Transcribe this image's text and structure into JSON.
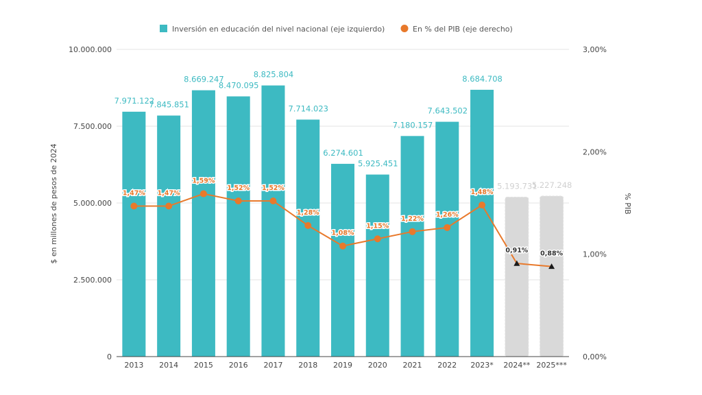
{
  "chart_data": {
    "type": "bar",
    "categories": [
      "2013",
      "2014",
      "2015",
      "2016",
      "2017",
      "2018",
      "2019",
      "2020",
      "2021",
      "2022",
      "2023*",
      "2024**",
      "2025***"
    ],
    "series": [
      {
        "name": "Inversión en educación del nivel nacional (eje izquierdo)",
        "type": "bar",
        "axis": "left",
        "values": [
          7971122,
          7845851,
          8669247,
          8470095,
          8825804,
          7714023,
          6274601,
          5925451,
          7180157,
          7643502,
          8684708,
          5193731,
          5227248
        ],
        "labels": [
          "7.971.122",
          "7.845.851",
          "8.669.247",
          "8.470.095",
          "8.825.804",
          "7.714.023",
          "6.274.601",
          "5.925.451",
          "7.180.157",
          "7.643.502",
          "8.684.708",
          "5.193.731",
          "5.227.248"
        ],
        "projected": [
          false,
          false,
          false,
          false,
          false,
          false,
          false,
          false,
          false,
          false,
          false,
          true,
          true
        ]
      },
      {
        "name": "En % del PIB (eje derecho)",
        "type": "line",
        "axis": "right",
        "values": [
          1.47,
          1.47,
          1.59,
          1.52,
          1.52,
          1.28,
          1.08,
          1.15,
          1.22,
          1.26,
          1.48,
          0.91,
          0.88
        ],
        "labels": [
          "1,47%",
          "1,47%",
          "1,59%",
          "1,52%",
          "1,52%",
          "1,28%",
          "1,08%",
          "1,15%",
          "1,22%",
          "1,26%",
          "1,48%",
          "0,91%",
          "0,88%"
        ],
        "projected": [
          false,
          false,
          false,
          false,
          false,
          false,
          false,
          false,
          false,
          false,
          false,
          true,
          true
        ]
      }
    ],
    "ylabel": "$ en millones de pesos de 2024",
    "ylim": [
      0,
      10000000
    ],
    "yticks": [
      0,
      2500000,
      5000000,
      7500000,
      10000000
    ],
    "ytick_labels": [
      "0",
      "2.500.000",
      "5.000.000",
      "7.500.000",
      "10.000.000"
    ],
    "y2label": "% PIB",
    "y2lim": [
      0,
      3
    ],
    "y2ticks": [
      0,
      1,
      2,
      3
    ],
    "y2tick_labels": [
      "0,00%",
      "1,00%",
      "2,00%",
      "3,00%"
    ],
    "grid": true,
    "legend_position": "top-center",
    "colors": {
      "bar": "#3dbac2",
      "bar_projected": "#d9d9d9",
      "bar_label": "#3dbac2",
      "bar_label_projected": "#d0d0d0",
      "line": "#e8792b",
      "marker": "#e8792b",
      "marker_projected": "#1a1a1a",
      "line_label": "#e8792b",
      "line_label_projected": "#333333"
    }
  }
}
